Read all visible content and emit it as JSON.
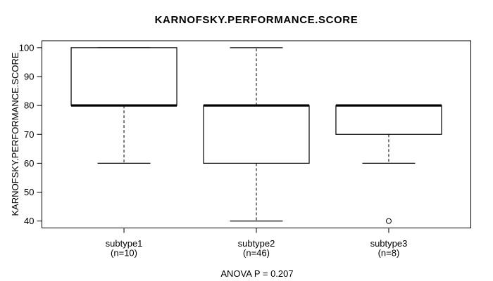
{
  "chart_data": {
    "type": "boxplot",
    "title": "KARNOFSKY.PERFORMANCE.SCORE",
    "ylabel": "KARNOFSKY.PERFORMANCE.SCORE",
    "xlabel": "",
    "annotation": "ANOVA P = 0.207",
    "ylim": [
      37.6,
      102.4
    ],
    "yticks": [
      40,
      50,
      60,
      70,
      80,
      90,
      100
    ],
    "grid": false,
    "legend": false,
    "groups": [
      {
        "label": "subtype1",
        "sublabel": "(n=10)",
        "n": 10,
        "stats": {
          "whisker_low": 60,
          "q1": 80,
          "median": 80,
          "q3": 100,
          "whisker_high": 100
        },
        "outliers": []
      },
      {
        "label": "subtype2",
        "sublabel": "(n=46)",
        "n": 46,
        "stats": {
          "whisker_low": 40,
          "q1": 60,
          "median": 80,
          "q3": 80,
          "whisker_high": 100
        },
        "outliers": []
      },
      {
        "label": "subtype3",
        "sublabel": "(n=8)",
        "n": 8,
        "stats": {
          "whisker_low": 60,
          "q1": 70,
          "median": 80,
          "q3": 80,
          "whisker_high": 80
        },
        "outliers": [
          40
        ]
      }
    ],
    "colors": {
      "foreground": "#000000",
      "background": "#ffffff"
    }
  }
}
